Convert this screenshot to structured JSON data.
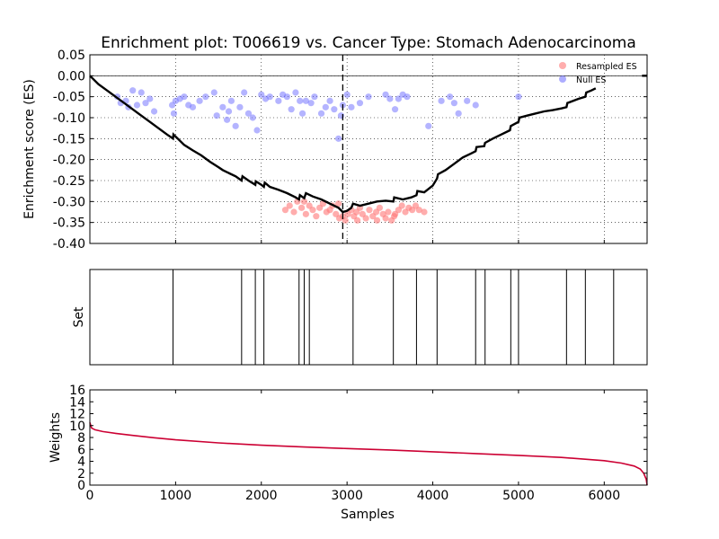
{
  "chart_data": [
    {
      "type": "scatter+line",
      "title": "Enrichment plot: T006619 vs. Cancer Type: Stomach Adenocarcinoma",
      "ylabel": "Enrichment score (ES)",
      "xlim": [
        0,
        6500
      ],
      "ylim": [
        -0.4,
        0.05
      ],
      "yticks": [
        "0.05",
        "0.00",
        "-0.05",
        "-0.10",
        "-0.15",
        "-0.20",
        "-0.25",
        "-0.30",
        "-0.35",
        "-0.40"
      ],
      "grid": true,
      "legend": {
        "placement": "top-right",
        "entries": [
          {
            "label": "Resampled ES",
            "color": "#ff7777"
          },
          {
            "label": "Null ES",
            "color": "#7777ff"
          }
        ]
      },
      "vline_x": 2950,
      "running_es": [
        [
          0,
          0.0
        ],
        [
          100,
          -0.02
        ],
        [
          200,
          -0.035
        ],
        [
          300,
          -0.05
        ],
        [
          400,
          -0.065
        ],
        [
          500,
          -0.08
        ],
        [
          600,
          -0.095
        ],
        [
          700,
          -0.11
        ],
        [
          800,
          -0.125
        ],
        [
          900,
          -0.14
        ],
        [
          970,
          -0.15
        ],
        [
          975,
          -0.14
        ],
        [
          1050,
          -0.155
        ],
        [
          1100,
          -0.165
        ],
        [
          1200,
          -0.178
        ],
        [
          1300,
          -0.19
        ],
        [
          1400,
          -0.205
        ],
        [
          1500,
          -0.218
        ],
        [
          1550,
          -0.225
        ],
        [
          1600,
          -0.23
        ],
        [
          1700,
          -0.24
        ],
        [
          1770,
          -0.25
        ],
        [
          1780,
          -0.24
        ],
        [
          1850,
          -0.25
        ],
        [
          1930,
          -0.26
        ],
        [
          1935,
          -0.252
        ],
        [
          2000,
          -0.26
        ],
        [
          2030,
          -0.265
        ],
        [
          2040,
          -0.255
        ],
        [
          2100,
          -0.265
        ],
        [
          2200,
          -0.272
        ],
        [
          2300,
          -0.28
        ],
        [
          2400,
          -0.29
        ],
        [
          2440,
          -0.295
        ],
        [
          2450,
          -0.285
        ],
        [
          2500,
          -0.292
        ],
        [
          2520,
          -0.28
        ],
        [
          2600,
          -0.288
        ],
        [
          2700,
          -0.295
        ],
        [
          2800,
          -0.305
        ],
        [
          2900,
          -0.315
        ],
        [
          2950,
          -0.325
        ],
        [
          3000,
          -0.322
        ],
        [
          3050,
          -0.315
        ],
        [
          3070,
          -0.305
        ],
        [
          3150,
          -0.31
        ],
        [
          3250,
          -0.305
        ],
        [
          3350,
          -0.3
        ],
        [
          3450,
          -0.298
        ],
        [
          3540,
          -0.3
        ],
        [
          3550,
          -0.29
        ],
        [
          3650,
          -0.295
        ],
        [
          3750,
          -0.29
        ],
        [
          3810,
          -0.285
        ],
        [
          3820,
          -0.275
        ],
        [
          3900,
          -0.278
        ],
        [
          3950,
          -0.27
        ],
        [
          4000,
          -0.262
        ],
        [
          4050,
          -0.245
        ],
        [
          4060,
          -0.235
        ],
        [
          4150,
          -0.225
        ],
        [
          4250,
          -0.21
        ],
        [
          4350,
          -0.195
        ],
        [
          4450,
          -0.185
        ],
        [
          4500,
          -0.18
        ],
        [
          4510,
          -0.17
        ],
        [
          4600,
          -0.168
        ],
        [
          4610,
          -0.16
        ],
        [
          4700,
          -0.15
        ],
        [
          4800,
          -0.14
        ],
        [
          4900,
          -0.13
        ],
        [
          4910,
          -0.12
        ],
        [
          5000,
          -0.11
        ],
        [
          5010,
          -0.1
        ],
        [
          5100,
          -0.095
        ],
        [
          5200,
          -0.09
        ],
        [
          5300,
          -0.085
        ],
        [
          5400,
          -0.082
        ],
        [
          5500,
          -0.078
        ],
        [
          5560,
          -0.075
        ],
        [
          5570,
          -0.065
        ],
        [
          5700,
          -0.055
        ],
        [
          5780,
          -0.05
        ],
        [
          5790,
          -0.04
        ],
        [
          5850,
          -0.035
        ],
        [
          5900,
          -0.03
        ]
      ],
      "resampled_es": [
        [
          2280,
          -0.32
        ],
        [
          2330,
          -0.31
        ],
        [
          2380,
          -0.325
        ],
        [
          2420,
          -0.3
        ],
        [
          2470,
          -0.315
        ],
        [
          2520,
          -0.33
        ],
        [
          2560,
          -0.31
        ],
        [
          2600,
          -0.32
        ],
        [
          2640,
          -0.335
        ],
        [
          2680,
          -0.315
        ],
        [
          2720,
          -0.305
        ],
        [
          2760,
          -0.325
        ],
        [
          2800,
          -0.32
        ],
        [
          2830,
          -0.31
        ],
        [
          2870,
          -0.33
        ],
        [
          2910,
          -0.34
        ],
        [
          2950,
          -0.335
        ],
        [
          2980,
          -0.345
        ],
        [
          3010,
          -0.33
        ],
        [
          3050,
          -0.32
        ],
        [
          3080,
          -0.335
        ],
        [
          3110,
          -0.325
        ],
        [
          3150,
          -0.315
        ],
        [
          3180,
          -0.33
        ],
        [
          3220,
          -0.34
        ],
        [
          3260,
          -0.32
        ],
        [
          3300,
          -0.335
        ],
        [
          3340,
          -0.325
        ],
        [
          3380,
          -0.315
        ],
        [
          3420,
          -0.33
        ],
        [
          3450,
          -0.34
        ],
        [
          3480,
          -0.325
        ],
        [
          3520,
          -0.345
        ],
        [
          3560,
          -0.33
        ],
        [
          3600,
          -0.32
        ],
        [
          3640,
          -0.31
        ],
        [
          3680,
          -0.325
        ],
        [
          3720,
          -0.315
        ],
        [
          3760,
          -0.32
        ],
        [
          3800,
          -0.31
        ],
        [
          3840,
          -0.32
        ],
        [
          3900,
          -0.325
        ],
        [
          2900,
          -0.305
        ],
        [
          3120,
          -0.345
        ],
        [
          3350,
          -0.345
        ],
        [
          3550,
          -0.335
        ],
        [
          2500,
          -0.3
        ]
      ],
      "null_es": [
        [
          320,
          -0.05
        ],
        [
          360,
          -0.065
        ],
        [
          420,
          -0.06
        ],
        [
          450,
          -0.075
        ],
        [
          500,
          -0.035
        ],
        [
          550,
          -0.07
        ],
        [
          600,
          -0.04
        ],
        [
          650,
          -0.065
        ],
        [
          700,
          -0.055
        ],
        [
          750,
          -0.085
        ],
        [
          960,
          -0.07
        ],
        [
          980,
          -0.09
        ],
        [
          1000,
          -0.06
        ],
        [
          1050,
          -0.055
        ],
        [
          1100,
          -0.05
        ],
        [
          1150,
          -0.07
        ],
        [
          1200,
          -0.075
        ],
        [
          1280,
          -0.06
        ],
        [
          1350,
          -0.05
        ],
        [
          1450,
          -0.04
        ],
        [
          1480,
          -0.095
        ],
        [
          1550,
          -0.075
        ],
        [
          1600,
          -0.105
        ],
        [
          1620,
          -0.085
        ],
        [
          1650,
          -0.06
        ],
        [
          1700,
          -0.12
        ],
        [
          1750,
          -0.075
        ],
        [
          1800,
          -0.04
        ],
        [
          1850,
          -0.09
        ],
        [
          1900,
          -0.1
        ],
        [
          1950,
          -0.13
        ],
        [
          2000,
          -0.045
        ],
        [
          2050,
          -0.055
        ],
        [
          2100,
          -0.05
        ],
        [
          2200,
          -0.06
        ],
        [
          2250,
          -0.045
        ],
        [
          2300,
          -0.05
        ],
        [
          2350,
          -0.08
        ],
        [
          2400,
          -0.04
        ],
        [
          2450,
          -0.06
        ],
        [
          2480,
          -0.09
        ],
        [
          2520,
          -0.06
        ],
        [
          2580,
          -0.065
        ],
        [
          2620,
          -0.05
        ],
        [
          2700,
          -0.09
        ],
        [
          2750,
          -0.075
        ],
        [
          2800,
          -0.06
        ],
        [
          2850,
          -0.08
        ],
        [
          2900,
          -0.15
        ],
        [
          2930,
          -0.095
        ],
        [
          2950,
          -0.07
        ],
        [
          3000,
          -0.045
        ],
        [
          3050,
          -0.075
        ],
        [
          3150,
          -0.065
        ],
        [
          3250,
          -0.05
        ],
        [
          3450,
          -0.045
        ],
        [
          3500,
          -0.055
        ],
        [
          3560,
          -0.08
        ],
        [
          3600,
          -0.055
        ],
        [
          3650,
          -0.045
        ],
        [
          3700,
          -0.05
        ],
        [
          3950,
          -0.12
        ],
        [
          4100,
          -0.06
        ],
        [
          4200,
          -0.05
        ],
        [
          4250,
          -0.065
        ],
        [
          4300,
          -0.09
        ],
        [
          4400,
          -0.06
        ],
        [
          4500,
          -0.07
        ],
        [
          5000,
          -0.05
        ]
      ]
    },
    {
      "type": "event-lines",
      "ylabel": "Set",
      "xlim": [
        0,
        6500
      ],
      "positions": [
        970,
        1770,
        1930,
        2030,
        2440,
        2500,
        2560,
        3070,
        3540,
        3810,
        4050,
        4500,
        4610,
        4910,
        5000,
        5560,
        5780,
        6110
      ]
    },
    {
      "type": "line",
      "xlabel": "Samples",
      "ylabel": "Weights",
      "xlim": [
        0,
        6500
      ],
      "ylim": [
        0,
        16
      ],
      "xticks": [
        "0",
        "1000",
        "2000",
        "3000",
        "4000",
        "5000",
        "6000"
      ],
      "yticks": [
        "0",
        "2",
        "4",
        "6",
        "8",
        "10",
        "12",
        "14",
        "16"
      ],
      "color": "#cc0033",
      "points": [
        [
          0,
          10.5
        ],
        [
          20,
          9.6
        ],
        [
          60,
          9.3
        ],
        [
          150,
          9.0
        ],
        [
          300,
          8.7
        ],
        [
          500,
          8.35
        ],
        [
          750,
          7.95
        ],
        [
          1000,
          7.6
        ],
        [
          1500,
          7.1
        ],
        [
          2000,
          6.7
        ],
        [
          2500,
          6.4
        ],
        [
          3000,
          6.15
        ],
        [
          3500,
          5.9
        ],
        [
          4000,
          5.6
        ],
        [
          4500,
          5.3
        ],
        [
          5000,
          5.0
        ],
        [
          5500,
          4.65
        ],
        [
          6000,
          4.1
        ],
        [
          6200,
          3.7
        ],
        [
          6350,
          3.2
        ],
        [
          6420,
          2.7
        ],
        [
          6460,
          2.0
        ],
        [
          6490,
          1.0
        ],
        [
          6500,
          0.0
        ]
      ]
    }
  ]
}
